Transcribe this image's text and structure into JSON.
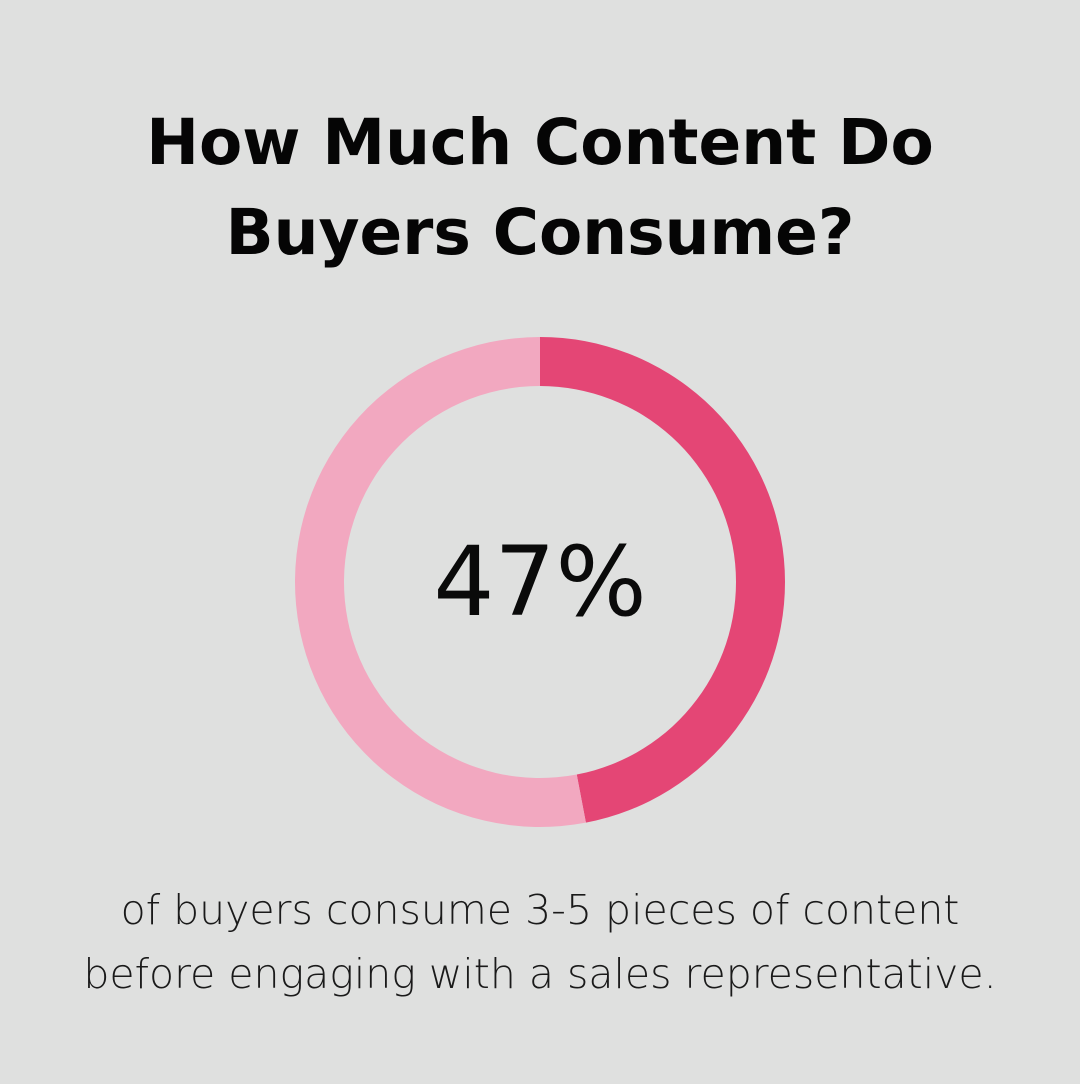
{
  "title": {
    "line1": "How Much Content Do",
    "line2": "Buyers Consume?"
  },
  "chart_data": {
    "type": "pie",
    "value_label": "47%",
    "slices": [
      {
        "value": 47,
        "color": "#e44675"
      },
      {
        "value": 53,
        "color": "#f2a8c0"
      }
    ]
  },
  "caption": {
    "line1": "of buyers consume 3-5 pieces of content",
    "line2": "before engaging with a sales representative."
  }
}
